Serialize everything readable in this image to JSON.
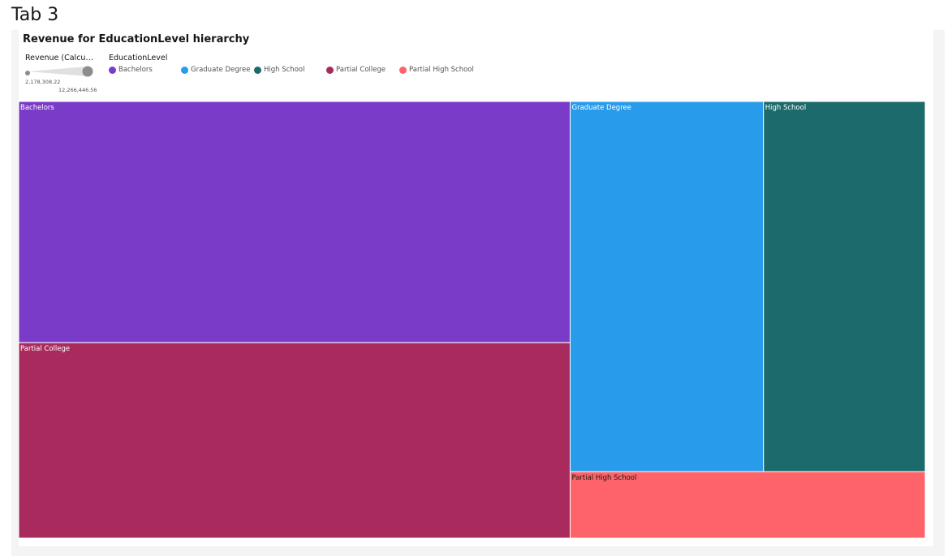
{
  "tab": {
    "title": "Tab 3"
  },
  "chart_data": {
    "type": "treemap",
    "title": "Revenue for EducationLevel hierarchy",
    "size_legend": {
      "heading": "Revenue (Calculat...",
      "min_label": "2,178,308.22",
      "max_label": "12,266,446.56"
    },
    "color_legend": {
      "heading": "EducationLevel",
      "entries": [
        {
          "name": "Bachelors",
          "color": "#7a3bc9"
        },
        {
          "name": "Graduate Degree",
          "color": "#289bea"
        },
        {
          "name": "High School",
          "color": "#1c6a6b"
        },
        {
          "name": "Partial College",
          "color": "#a92b5e"
        },
        {
          "name": "Partial High School",
          "color": "#fd6368"
        }
      ]
    },
    "nodes": [
      {
        "name": "Bachelors",
        "value": 12266446.56,
        "color": "#7a3bc9",
        "label_color": "#ffffff"
      },
      {
        "name": "Partial College",
        "value": 9940000,
        "color": "#a92b5e",
        "label_color": "#ffffff"
      },
      {
        "name": "Graduate Degree",
        "value": 6600000,
        "color": "#289bea",
        "label_color": "#ffffff"
      },
      {
        "name": "High School",
        "value": 5520000,
        "color": "#1c6a6b",
        "label_color": "#ffffff"
      },
      {
        "name": "Partial High School",
        "value": 2178308.22,
        "color": "#fd6368",
        "label_color": "#161616"
      }
    ]
  }
}
